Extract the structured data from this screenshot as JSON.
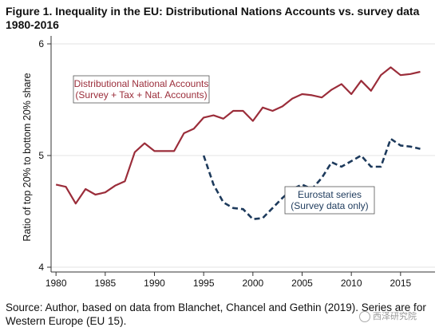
{
  "title": "Figure 1. Inequality in the EU: Distributional Nations Accounts vs. survey data 1980-2016",
  "source": "Source: Author, based on data from Blanchet, Chancel and Gethin (2019). Series are for Western Europe (EU 15).",
  "watermark": "西泽研究院",
  "chart_data": {
    "type": "line",
    "ylabel": "Ratio of top 20% to bottom 20% share",
    "xlabel": "",
    "xlim": [
      1979.5,
      2018.5
    ],
    "ylim": [
      4,
      6
    ],
    "x_ticks": [
      1980,
      1985,
      1990,
      1995,
      2000,
      2005,
      2010,
      2015
    ],
    "y_ticks": [
      4,
      5,
      6
    ],
    "grid": true,
    "series": [
      {
        "name": "Distributional National Accounts (Survey + Tax + Nat. Accounts)",
        "label_lines": [
          "Distributional National Accounts",
          "(Survey + Tax + Nat. Accounts)"
        ],
        "color": "#9b2d3a",
        "style": "solid",
        "x": [
          1980,
          1981,
          1982,
          1983,
          1984,
          1985,
          1986,
          1987,
          1988,
          1989,
          1990,
          1991,
          1992,
          1993,
          1994,
          1995,
          1996,
          1997,
          1998,
          1999,
          2000,
          2001,
          2002,
          2003,
          2004,
          2005,
          2006,
          2007,
          2008,
          2009,
          2010,
          2011,
          2012,
          2013,
          2014,
          2015,
          2016,
          2017
        ],
        "y": [
          4.74,
          4.72,
          4.57,
          4.7,
          4.65,
          4.67,
          4.73,
          4.77,
          5.03,
          5.11,
          5.04,
          5.04,
          5.04,
          5.2,
          5.24,
          5.34,
          5.36,
          5.33,
          5.4,
          5.4,
          5.31,
          5.43,
          5.4,
          5.44,
          5.51,
          5.55,
          5.54,
          5.52,
          5.59,
          5.64,
          5.55,
          5.67,
          5.58,
          5.72,
          5.79,
          5.72,
          5.73,
          5.75
        ]
      },
      {
        "name": "Eurostat series (Survey data only)",
        "label_lines": [
          "Eurostat series",
          "(Survey data only)"
        ],
        "color": "#1d3a5c",
        "style": "dashed",
        "x": [
          1995,
          1996,
          1997,
          1998,
          1999,
          2000,
          2001,
          2002,
          2003,
          2004,
          2005,
          2006,
          2007,
          2008,
          2009,
          2010,
          2011,
          2012,
          2013,
          2014,
          2015,
          2016,
          2017
        ],
        "y": [
          5.0,
          4.74,
          4.58,
          4.53,
          4.52,
          4.43,
          4.44,
          4.53,
          4.62,
          4.7,
          4.74,
          4.7,
          4.8,
          4.94,
          4.9,
          4.95,
          5.0,
          4.9,
          4.9,
          5.15,
          5.09,
          5.08,
          5.06
        ]
      }
    ]
  }
}
